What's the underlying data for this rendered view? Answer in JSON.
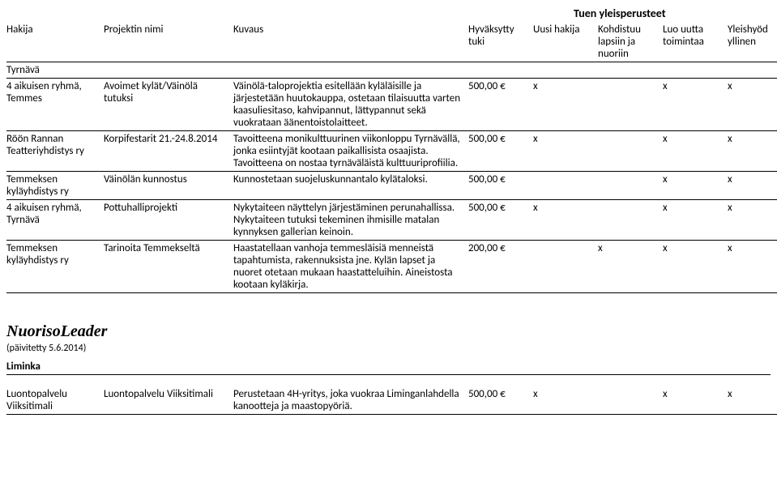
{
  "page_title": "Tuen yleisperusteet",
  "columns": {
    "c0": "Hakija",
    "c1": "Projektin nimi",
    "c2": "Kuvaus",
    "c3": "Hyväksytty tuki",
    "c4": "Uusi hakija",
    "c5": "Kohdistuu lapsiin ja nuoriin",
    "c6": "Luo uutta toimintaa",
    "c7": "Yleishyöd yllinen"
  },
  "section1_label": "Tyrnävä",
  "rows": [
    {
      "hakija": "4 aikuisen ryhmä, Temmes",
      "proj": "Avoimet kylät/Väinölä tutuksi",
      "kuvaus": "Väinölä-taloprojektia esitellään kyläläisille ja järjestetään huutokauppa, ostetaan tilaisuutta varten kaasuliesitaso, kahvipannut, lättypannut sekä vuokrataan äänentoistolaitteet.",
      "tuki": "500,00 €",
      "uusi": "x",
      "lapset": "",
      "uutta": "x",
      "yleis": "x"
    },
    {
      "hakija": "Röön Rannan Teatteriyhdistys ry",
      "proj": "Korpifestarit 21.-24.8.2014",
      "kuvaus": "Tavoitteena monikulttuurinen viikonloppu Tyrnävällä, jonka esiintyjät kootaan paikallisista osaajista. Tavoitteena on nostaa tyrnäväläistä kulttuuriprofiilia.",
      "tuki": "500,00 €",
      "uusi": "x",
      "lapset": "",
      "uutta": "x",
      "yleis": "x"
    },
    {
      "hakija": "Temmeksen kyläyhdistys ry",
      "proj": "Väinölän kunnostus",
      "kuvaus": "Kunnostetaan suojeluskunnantalo kylätaloksi.",
      "tuki": "500,00 €",
      "uusi": "",
      "lapset": "",
      "uutta": "x",
      "yleis": "x"
    },
    {
      "hakija": "4 aikuisen ryhmä, Tyrnävä",
      "proj": "Pottuhalliprojekti",
      "kuvaus": "Nykytaiteen näyttelyn järjestäminen perunahallissa. Nykytaiteen tutuksi tekeminen ihmisille matalan kynnyksen gallerian keinoin.",
      "tuki": "500,00 €",
      "uusi": "x",
      "lapset": "",
      "uutta": "x",
      "yleis": "x"
    },
    {
      "hakija": "Temmeksen kyläyhdistys ry",
      "proj": "Tarinoita Temmekseltä",
      "kuvaus": "Haastatellaan vanhoja temmesläisiä menneistä tapahtumista, rakennuksista jne. Kylän lapset ja nuoret otetaan mukaan haastatteluihin. Aineistosta kootaan kyläkirja.",
      "tuki": "200,00 €",
      "uusi": "",
      "lapset": "x",
      "uutta": "x",
      "yleis": "x"
    }
  ],
  "section2": {
    "title": "NuorisoLeader",
    "sub": "(päivitetty 5.6.2014)",
    "group_label": "Liminka",
    "row": {
      "hakija": "Luontopalvelu Viiksitimali",
      "proj": "Luontopalvelu Viiksitimali",
      "kuvaus": "Perustetaan 4H-yritys, joka vuokraa Liminganlahdella kanootteja ja maastopyöriä.",
      "tuki": "500,00 €",
      "uusi": "x",
      "lapset": "",
      "uutta": "x",
      "yleis": "x"
    }
  }
}
